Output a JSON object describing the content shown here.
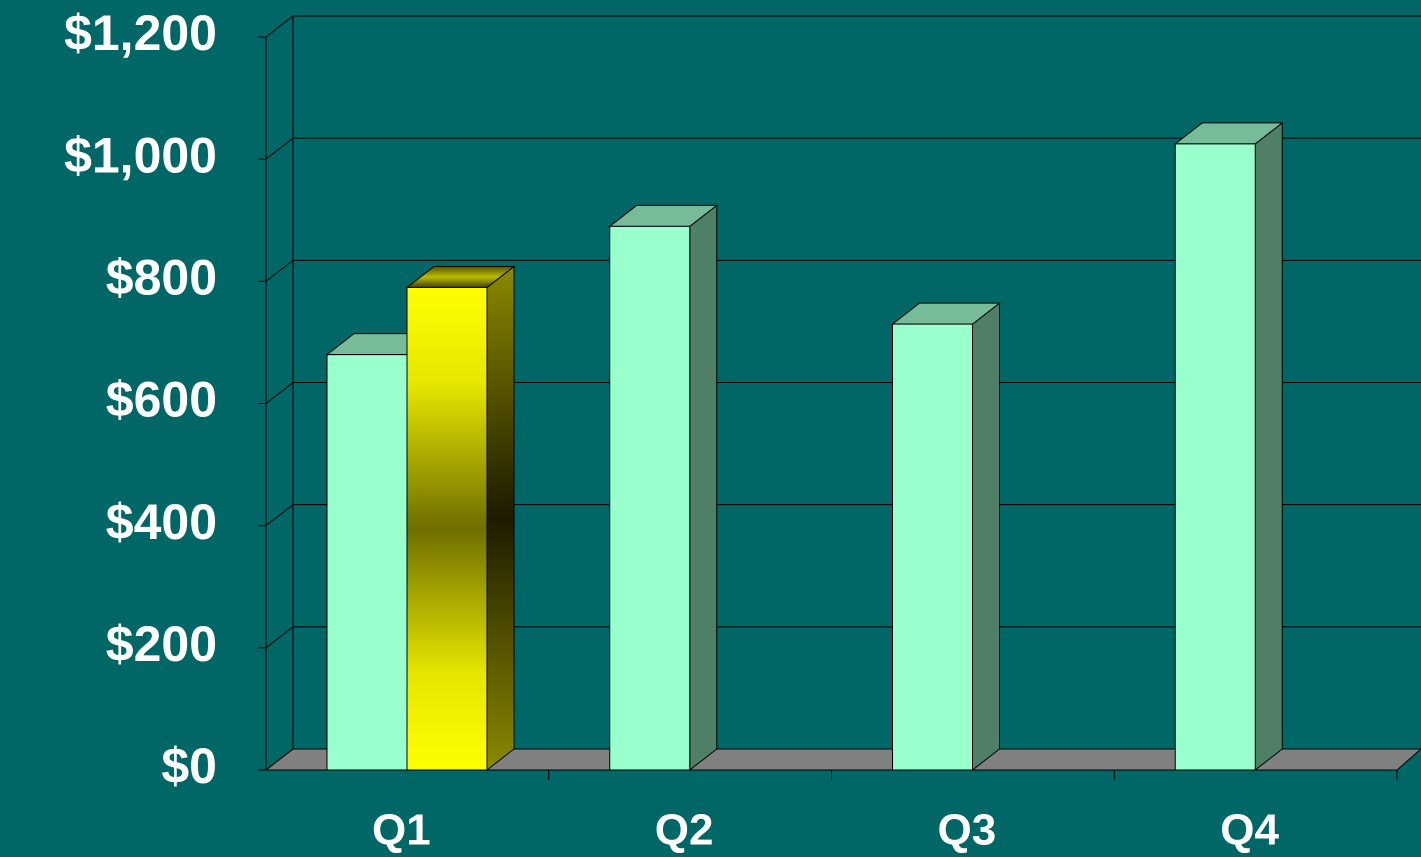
{
  "chart_data": {
    "type": "bar3d",
    "categories": [
      "Q1",
      "Q2",
      "Q3",
      "Q4"
    ],
    "series": [
      {
        "color": "#99ffcc",
        "values": [
          680,
          890,
          730,
          1025
        ]
      },
      {
        "color": "#ffff00",
        "values": [
          790,
          null,
          null,
          null
        ]
      }
    ],
    "ylim": [
      0,
      1200
    ],
    "yticks": [
      {
        "value": 0,
        "label": "$0"
      },
      {
        "value": 200,
        "label": "$200"
      },
      {
        "value": 400,
        "label": "$400"
      },
      {
        "value": 600,
        "label": "$600"
      },
      {
        "value": 800,
        "label": "$800"
      },
      {
        "value": 1000,
        "label": "$1,000"
      },
      {
        "value": 1200,
        "label": "$1,200"
      }
    ],
    "grid": true
  }
}
